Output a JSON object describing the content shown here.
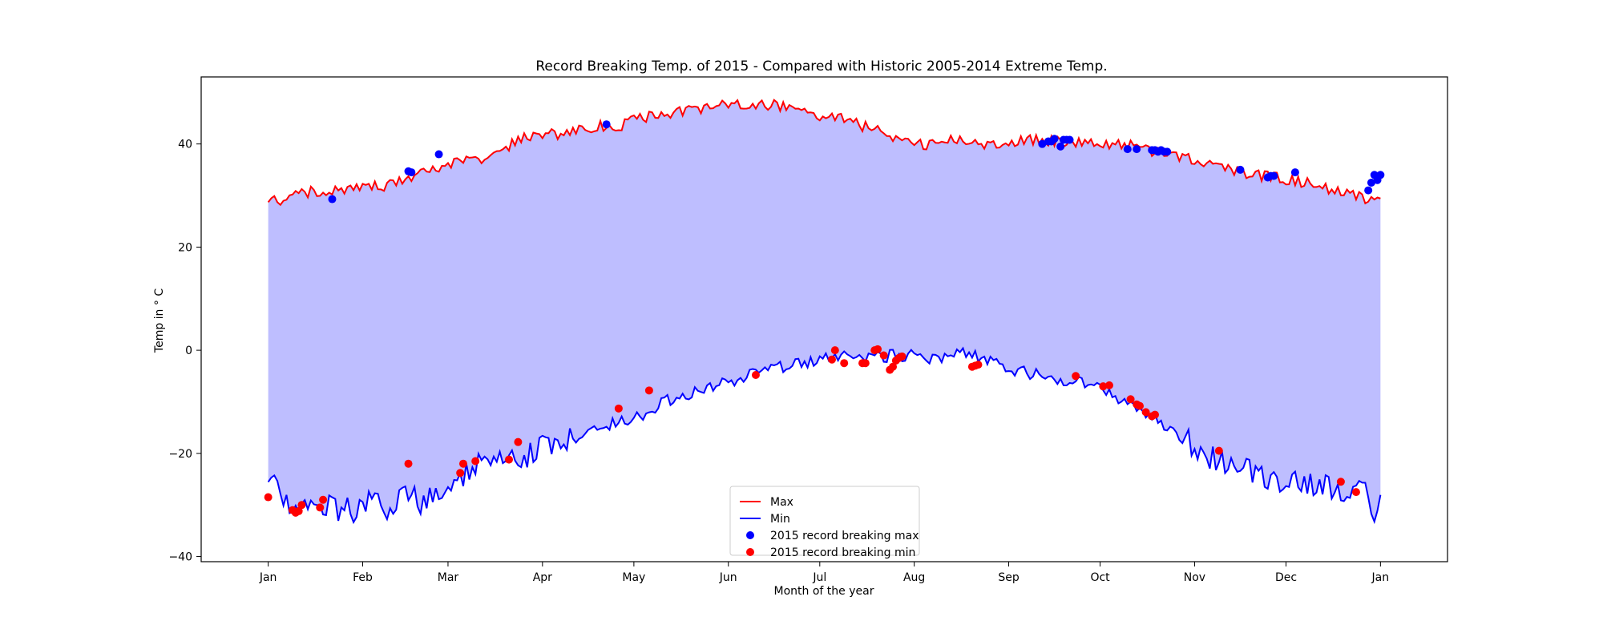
{
  "chart_data": {
    "type": "line",
    "title": "Record Breaking Temp. of 2015 - Compared with Historic 2005-2014 Extreme Temp.",
    "xlabel": "Month of the year",
    "ylabel": "Temp in ° C",
    "xlim": [
      -22,
      387
    ],
    "ylim": [
      -41,
      53
    ],
    "grid": false,
    "legend_position": "bottom-center",
    "x_ticks": [
      {
        "label": "Jan",
        "day": 0
      },
      {
        "label": "Feb",
        "day": 31
      },
      {
        "label": "Mar",
        "day": 59
      },
      {
        "label": "Apr",
        "day": 90
      },
      {
        "label": "May",
        "day": 120
      },
      {
        "label": "Jun",
        "day": 151
      },
      {
        "label": "Jul",
        "day": 181
      },
      {
        "label": "Aug",
        "day": 212
      },
      {
        "label": "Sep",
        "day": 243
      },
      {
        "label": "Oct",
        "day": 273
      },
      {
        "label": "Nov",
        "day": 304
      },
      {
        "label": "Dec",
        "day": 334
      },
      {
        "label": "Jan",
        "day": 365
      }
    ],
    "y_ticks": [
      -40,
      -20,
      0,
      20,
      40
    ],
    "fill_color": "#bebeff",
    "max_anchors": [
      [
        0,
        29.5
      ],
      [
        5,
        28.5
      ],
      [
        10,
        30.5
      ],
      [
        20,
        31
      ],
      [
        25,
        30.5
      ],
      [
        30,
        32
      ],
      [
        40,
        32
      ],
      [
        45,
        33.5
      ],
      [
        50,
        34
      ],
      [
        55,
        35.5
      ],
      [
        60,
        36
      ],
      [
        65,
        36.5
      ],
      [
        70,
        37
      ],
      [
        75,
        38
      ],
      [
        80,
        40
      ],
      [
        85,
        41.5
      ],
      [
        90,
        42
      ],
      [
        95,
        42
      ],
      [
        100,
        42.5
      ],
      [
        105,
        43
      ],
      [
        110,
        43.5
      ],
      [
        115,
        43.5
      ],
      [
        120,
        44.5
      ],
      [
        125,
        45.5
      ],
      [
        130,
        46
      ],
      [
        140,
        46.5
      ],
      [
        150,
        47.5
      ],
      [
        160,
        47.5
      ],
      [
        170,
        47.5
      ],
      [
        175,
        47
      ],
      [
        180,
        45.5
      ],
      [
        185,
        45.5
      ],
      [
        190,
        44.5
      ],
      [
        195,
        43.5
      ],
      [
        200,
        42.5
      ],
      [
        205,
        41.5
      ],
      [
        210,
        41
      ],
      [
        215,
        40
      ],
      [
        220,
        40
      ],
      [
        225,
        41
      ],
      [
        230,
        40.5
      ],
      [
        235,
        40
      ],
      [
        240,
        40
      ],
      [
        245,
        40.5
      ],
      [
        250,
        41
      ],
      [
        255,
        40.5
      ],
      [
        260,
        40.5
      ],
      [
        265,
        40
      ],
      [
        270,
        40.5
      ],
      [
        275,
        40
      ],
      [
        280,
        40
      ],
      [
        285,
        39.5
      ],
      [
        290,
        38.5
      ],
      [
        295,
        38
      ],
      [
        300,
        37.5
      ],
      [
        305,
        36.5
      ],
      [
        310,
        36
      ],
      [
        315,
        35
      ],
      [
        320,
        34.5
      ],
      [
        325,
        34
      ],
      [
        330,
        33.5
      ],
      [
        335,
        33
      ],
      [
        340,
        32.5
      ],
      [
        345,
        32
      ],
      [
        350,
        31
      ],
      [
        355,
        30
      ],
      [
        360,
        29.5
      ],
      [
        365,
        30
      ]
    ],
    "min_anchors": [
      [
        0,
        -25
      ],
      [
        5,
        -29
      ],
      [
        10,
        -30
      ],
      [
        15,
        -29
      ],
      [
        20,
        -30
      ],
      [
        25,
        -31
      ],
      [
        30,
        -31
      ],
      [
        35,
        -29
      ],
      [
        40,
        -31
      ],
      [
        45,
        -27
      ],
      [
        50,
        -30
      ],
      [
        55,
        -27
      ],
      [
        60,
        -26
      ],
      [
        65,
        -24
      ],
      [
        70,
        -22
      ],
      [
        75,
        -22
      ],
      [
        80,
        -21.5
      ],
      [
        85,
        -20.5
      ],
      [
        90,
        -19
      ],
      [
        95,
        -18
      ],
      [
        100,
        -17
      ],
      [
        105,
        -16.5
      ],
      [
        110,
        -15
      ],
      [
        115,
        -14
      ],
      [
        120,
        -13
      ],
      [
        125,
        -12
      ],
      [
        130,
        -10
      ],
      [
        135,
        -9
      ],
      [
        140,
        -8
      ],
      [
        145,
        -7
      ],
      [
        150,
        -6.5
      ],
      [
        155,
        -5.5
      ],
      [
        160,
        -4.5
      ],
      [
        165,
        -4
      ],
      [
        170,
        -3
      ],
      [
        175,
        -2.5
      ],
      [
        180,
        -2
      ],
      [
        185,
        -1.5
      ],
      [
        190,
        -1
      ],
      [
        195,
        -1
      ],
      [
        200,
        -1.5
      ],
      [
        205,
        -1
      ],
      [
        210,
        -1
      ],
      [
        215,
        -1.5
      ],
      [
        220,
        -1.5
      ],
      [
        225,
        -1
      ],
      [
        230,
        -0.5
      ],
      [
        235,
        -2
      ],
      [
        240,
        -3
      ],
      [
        245,
        -4
      ],
      [
        250,
        -4.5
      ],
      [
        255,
        -5
      ],
      [
        260,
        -5.5
      ],
      [
        265,
        -6
      ],
      [
        270,
        -7
      ],
      [
        275,
        -8
      ],
      [
        280,
        -9.5
      ],
      [
        285,
        -11
      ],
      [
        290,
        -13
      ],
      [
        295,
        -15
      ],
      [
        300,
        -17
      ],
      [
        305,
        -19
      ],
      [
        310,
        -21
      ],
      [
        315,
        -22
      ],
      [
        320,
        -23
      ],
      [
        325,
        -24
      ],
      [
        330,
        -25
      ],
      [
        335,
        -25
      ],
      [
        340,
        -25.5
      ],
      [
        345,
        -26
      ],
      [
        350,
        -26.5
      ],
      [
        355,
        -27
      ],
      [
        360,
        -28
      ],
      [
        362,
        -34
      ],
      [
        365,
        -29.5
      ]
    ],
    "series": [
      {
        "name": "Max",
        "color": "#ff0000",
        "style": "line"
      },
      {
        "name": "Min",
        "color": "#0000ff",
        "style": "line"
      },
      {
        "name": "2015 record breaking max",
        "color": "#0000ff",
        "style": "scatter",
        "points": [
          [
            21,
            29.3
          ],
          [
            46,
            34.7
          ],
          [
            47,
            34.5
          ],
          [
            56,
            38
          ],
          [
            111,
            43.8
          ],
          [
            254,
            40
          ],
          [
            256,
            40.5
          ],
          [
            257,
            40.5
          ],
          [
            258,
            41
          ],
          [
            260,
            39.5
          ],
          [
            261,
            40.8
          ],
          [
            262,
            40.8
          ],
          [
            263,
            40.8
          ],
          [
            282,
            39
          ],
          [
            285,
            39
          ],
          [
            290,
            38.8
          ],
          [
            291,
            38.8
          ],
          [
            292,
            38.5
          ],
          [
            293,
            38.8
          ],
          [
            294,
            38.5
          ],
          [
            295,
            38.5
          ],
          [
            319,
            35
          ],
          [
            328,
            33.5
          ],
          [
            329,
            33.8
          ],
          [
            330,
            33.8
          ],
          [
            337,
            34.5
          ],
          [
            361,
            31
          ],
          [
            362,
            32.5
          ],
          [
            363,
            34
          ],
          [
            364,
            33
          ],
          [
            365,
            34
          ]
        ]
      },
      {
        "name": "2015 record breaking min",
        "color": "#ff0000",
        "style": "scatter",
        "points": [
          [
            0,
            -28.5
          ],
          [
            8,
            -31
          ],
          [
            9,
            -31.5
          ],
          [
            10,
            -31.2
          ],
          [
            11,
            -30
          ],
          [
            17,
            -30.5
          ],
          [
            18,
            -29
          ],
          [
            46,
            -22
          ],
          [
            63,
            -23.8
          ],
          [
            64,
            -22
          ],
          [
            68,
            -21.5
          ],
          [
            79,
            -21.2
          ],
          [
            82,
            -17.8
          ],
          [
            115,
            -11.3
          ],
          [
            125,
            -7.8
          ],
          [
            160,
            -4.8
          ],
          [
            185,
            -1.8
          ],
          [
            186,
            0
          ],
          [
            189,
            -2.5
          ],
          [
            195,
            -2.5
          ],
          [
            196,
            -2.5
          ],
          [
            199,
            0
          ],
          [
            200,
            0.2
          ],
          [
            202,
            -1
          ],
          [
            204,
            -3.8
          ],
          [
            205,
            -3.2
          ],
          [
            206,
            -2
          ],
          [
            207,
            -1.5
          ],
          [
            208,
            -1.2
          ],
          [
            231,
            -3.2
          ],
          [
            232,
            -3
          ],
          [
            233,
            -2.8
          ],
          [
            265,
            -5
          ],
          [
            274,
            -7
          ],
          [
            276,
            -6.8
          ],
          [
            283,
            -9.5
          ],
          [
            285,
            -10.5
          ],
          [
            286,
            -10.8
          ],
          [
            288,
            -12
          ],
          [
            290,
            -12.8
          ],
          [
            291,
            -12.5
          ],
          [
            312,
            -19.5
          ],
          [
            352,
            -25.5
          ],
          [
            357,
            -27.5
          ]
        ]
      }
    ]
  }
}
